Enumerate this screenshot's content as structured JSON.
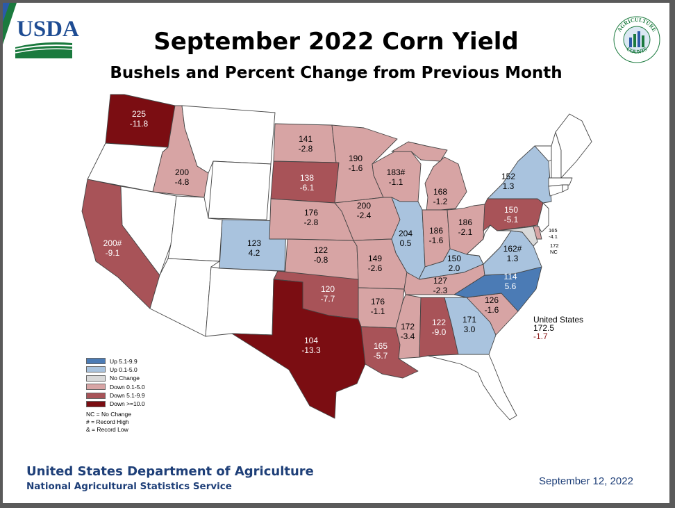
{
  "header": {
    "agency_logo": "USDA",
    "ag_counts_logo": "AGRICULTURE COUNTS",
    "title": "September 2022 Corn Yield",
    "subtitle": "Bushels and Percent Change from Previous Month"
  },
  "colors": {
    "up_high": "#4b7bb5",
    "up_low": "#a9c3de",
    "no_change": "#d9d9d9",
    "down_low": "#d7a4a4",
    "down_mid": "#a85358",
    "down_high": "#7b0d12",
    "none": "#ffffff",
    "footer_text": "#1e3f78",
    "usda_blue": "#1e4c93",
    "usda_green": "#1b7a3e"
  },
  "states": [
    {
      "id": "WA",
      "yield": "225",
      "change": "-11.8",
      "cat": "down_high"
    },
    {
      "id": "ID",
      "yield": "200",
      "change": "-4.8",
      "cat": "down_low"
    },
    {
      "id": "CA",
      "yield": "200#",
      "change": "-9.1",
      "cat": "down_mid"
    },
    {
      "id": "CO",
      "yield": "123",
      "change": "4.2",
      "cat": "up_low"
    },
    {
      "id": "ND",
      "yield": "141",
      "change": "-2.8",
      "cat": "down_low"
    },
    {
      "id": "SD",
      "yield": "138",
      "change": "-6.1",
      "cat": "down_mid"
    },
    {
      "id": "NE",
      "yield": "176",
      "change": "-2.8",
      "cat": "down_low"
    },
    {
      "id": "KS",
      "yield": "122",
      "change": "-0.8",
      "cat": "down_low"
    },
    {
      "id": "OK",
      "yield": "120",
      "change": "-7.7",
      "cat": "down_mid"
    },
    {
      "id": "TX",
      "yield": "104",
      "change": "-13.3",
      "cat": "down_high"
    },
    {
      "id": "MN",
      "yield": "190",
      "change": "-1.6",
      "cat": "down_low"
    },
    {
      "id": "IA",
      "yield": "200",
      "change": "-2.4",
      "cat": "down_low"
    },
    {
      "id": "MO",
      "yield": "149",
      "change": "-2.6",
      "cat": "down_low"
    },
    {
      "id": "AR",
      "yield": "176",
      "change": "-1.1",
      "cat": "down_low"
    },
    {
      "id": "LA",
      "yield": "165",
      "change": "-5.7",
      "cat": "down_mid"
    },
    {
      "id": "WI",
      "yield": "183#",
      "change": "-1.1",
      "cat": "down_low"
    },
    {
      "id": "IL",
      "yield": "204",
      "change": "0.5",
      "cat": "up_low"
    },
    {
      "id": "MS",
      "yield": "172",
      "change": "-3.4",
      "cat": "down_low"
    },
    {
      "id": "MI",
      "yield": "168",
      "change": "-1.2",
      "cat": "down_low"
    },
    {
      "id": "IN",
      "yield": "186",
      "change": "-1.6",
      "cat": "down_low"
    },
    {
      "id": "OH",
      "yield": "186",
      "change": "-2.1",
      "cat": "down_low"
    },
    {
      "id": "KY",
      "yield": "150",
      "change": "2.0",
      "cat": "up_low"
    },
    {
      "id": "TN",
      "yield": "127",
      "change": "-2.3",
      "cat": "down_low"
    },
    {
      "id": "AL",
      "yield": "122",
      "change": "-9.0",
      "cat": "down_mid"
    },
    {
      "id": "GA",
      "yield": "171",
      "change": "3.0",
      "cat": "up_low"
    },
    {
      "id": "SC",
      "yield": "126",
      "change": "-1.6",
      "cat": "down_low"
    },
    {
      "id": "NC",
      "yield": "114",
      "change": "5.6",
      "cat": "up_high"
    },
    {
      "id": "VA",
      "yield": "162#",
      "change": "1.3",
      "cat": "up_low"
    },
    {
      "id": "PA",
      "yield": "150",
      "change": "-5.1",
      "cat": "down_mid"
    },
    {
      "id": "NY",
      "yield": "152",
      "change": "1.3",
      "cat": "up_low"
    },
    {
      "id": "DE",
      "yield": "165",
      "change": "-4.1",
      "cat": "down_low"
    },
    {
      "id": "MD",
      "yield": "172",
      "change": "NC",
      "cat": "no_change"
    }
  ],
  "us_total": {
    "label": "United States",
    "yield": "172.5",
    "change": "-1.7"
  },
  "legend": {
    "items": [
      {
        "label": "Up 5.1-9.9",
        "cat": "up_high"
      },
      {
        "label": "Up 0.1-5.0",
        "cat": "up_low"
      },
      {
        "label": "No Change",
        "cat": "no_change"
      },
      {
        "label": "Down 0.1-5.0",
        "cat": "down_low"
      },
      {
        "label": "Down 5.1-9.9",
        "cat": "down_mid"
      },
      {
        "label": "Down >=10.0",
        "cat": "down_high"
      }
    ],
    "notes": [
      "NC = No Change",
      "# = Record High",
      "& = Record Low"
    ]
  },
  "footer": {
    "org": "United States Department of Agriculture",
    "sub": "National Agricultural Statistics Service",
    "date": "September 12, 2022"
  }
}
